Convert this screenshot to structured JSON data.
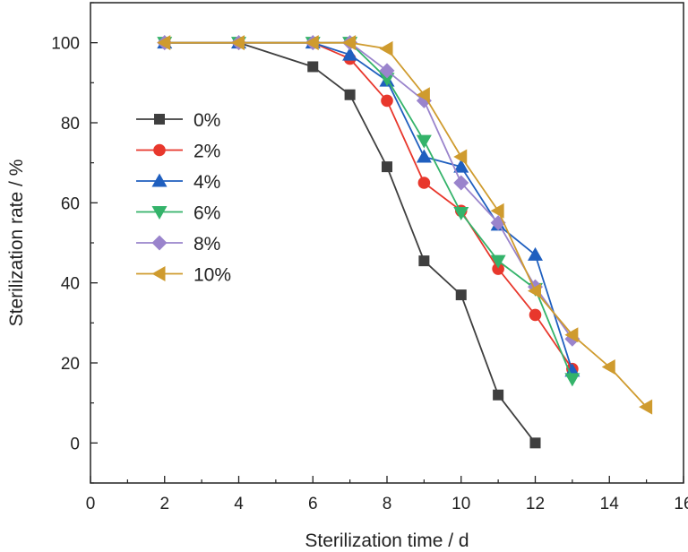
{
  "chart_data": {
    "type": "line",
    "title": "",
    "xlabel": "Sterilization time / d",
    "ylabel": "Sterilization rate / %",
    "xlim": [
      0,
      16
    ],
    "ylim": [
      -10,
      110
    ],
    "xticks": [
      0,
      2,
      4,
      6,
      8,
      10,
      12,
      14,
      16
    ],
    "yticks": [
      0,
      20,
      40,
      60,
      80,
      100
    ],
    "xtick_labels": [
      "0",
      "2",
      "4",
      "6",
      "8",
      "10",
      "12",
      "14",
      "16"
    ],
    "ytick_labels": [
      "0",
      "20",
      "40",
      "60",
      "80",
      "100"
    ],
    "grid": false,
    "legend_position": "left, middle",
    "series": [
      {
        "name": "0%",
        "marker": "square",
        "color": "#3f3f3f",
        "x": [
          2,
          4,
          6,
          7,
          8,
          9,
          10,
          11,
          12
        ],
        "y": [
          100,
          100,
          94,
          87,
          69,
          45.5,
          37,
          12,
          0
        ]
      },
      {
        "name": "2%",
        "marker": "circle",
        "color": "#e8372c",
        "x": [
          2,
          4,
          6,
          7,
          8,
          9,
          10,
          11,
          12,
          13
        ],
        "y": [
          100,
          100,
          100,
          96,
          85.5,
          65,
          58,
          43.5,
          32,
          18.5
        ]
      },
      {
        "name": "4%",
        "marker": "triangle-up",
        "color": "#1f5fbf",
        "x": [
          2,
          4,
          6,
          7,
          8,
          9,
          10,
          11,
          12,
          13
        ],
        "y": [
          100,
          100,
          100,
          97,
          90.5,
          71.5,
          69,
          54.5,
          47,
          18
        ]
      },
      {
        "name": "6%",
        "marker": "triangle-down",
        "color": "#34b36a",
        "x": [
          2,
          4,
          6,
          7,
          8,
          9,
          10,
          11,
          12,
          13
        ],
        "y": [
          100,
          100,
          100,
          100,
          91,
          75.5,
          57.5,
          45.5,
          38.5,
          16
        ]
      },
      {
        "name": "8%",
        "marker": "diamond",
        "color": "#9a84cc",
        "x": [
          2,
          4,
          6,
          7,
          8,
          9,
          10,
          11,
          12,
          13
        ],
        "y": [
          100,
          100,
          100,
          100,
          93,
          85.5,
          65,
          55,
          39,
          26
        ]
      },
      {
        "name": "10%",
        "marker": "triangle-left",
        "color": "#cf9b2e",
        "x": [
          2,
          4,
          6,
          7,
          8,
          9,
          10,
          11,
          12,
          13,
          14,
          15
        ],
        "y": [
          100,
          100,
          100,
          100,
          98.5,
          87,
          71.5,
          58,
          38,
          27,
          19,
          9
        ]
      }
    ]
  }
}
